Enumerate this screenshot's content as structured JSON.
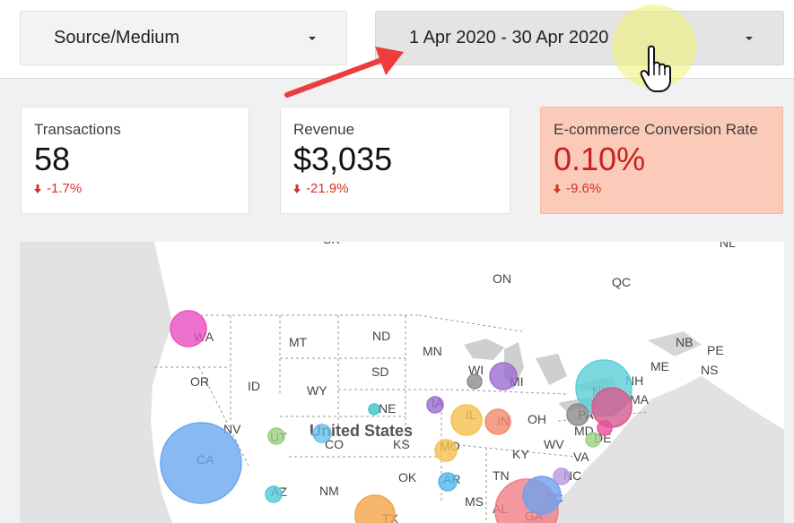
{
  "filters": {
    "dimension": "Source/Medium",
    "date_range": "1 Apr 2020 - 30 Apr 2020"
  },
  "icons": {
    "dropdown": "chevron-down-icon",
    "cursor": "hand-pointer-icon",
    "annotation": "red-arrow-icon",
    "delta": "arrow-down-icon"
  },
  "scorecards": [
    {
      "title": "Transactions",
      "value": "58",
      "delta": "-1.7%"
    },
    {
      "title": "Revenue",
      "value": "$3,035",
      "delta": "-21.9%"
    },
    {
      "title": "E-commerce Conversion Rate",
      "value": "0.10%",
      "delta": "-9.6%"
    }
  ],
  "map": {
    "country_label": "United States",
    "region_labels": [
      "NL",
      "ON",
      "QC",
      "NB",
      "PE",
      "NS",
      "ME",
      "WA",
      "MT",
      "ND",
      "MN",
      "OR",
      "ID",
      "SD",
      "WY",
      "WI",
      "MI",
      "NY",
      "NH",
      "MA",
      "IA",
      "NE",
      "IL",
      "IN",
      "OH",
      "PA",
      "NV",
      "UT",
      "CO",
      "KS",
      "MO",
      "MD",
      "DE",
      "CA",
      "KY",
      "WV",
      "VA",
      "OK",
      "AR",
      "TN",
      "NC",
      "AZ",
      "NM",
      "MS",
      "AL",
      "SC",
      "GA",
      "TX",
      "SK"
    ],
    "bubbles": [
      {
        "state": "WA",
        "color": "#e94fc0"
      },
      {
        "state": "CA",
        "color": "#6aa8f0"
      },
      {
        "state": "NY",
        "color": "#5ccfd8"
      },
      {
        "state": "MA",
        "color": "#d85a8e"
      },
      {
        "state": "MI",
        "color": "#9b6fd0"
      },
      {
        "state": "IL",
        "color": "#f5c04d"
      },
      {
        "state": "IN",
        "color": "#f28a6b"
      },
      {
        "state": "PA",
        "color": "#8c8c8c"
      },
      {
        "state": "GA",
        "color": "#f07f86"
      },
      {
        "state": "SC",
        "color": "#6fa0ee"
      },
      {
        "state": "TX",
        "color": "#f2a44b"
      },
      {
        "state": "MO",
        "color": "#f5c04d"
      },
      {
        "state": "UT",
        "color": "#9bd17f"
      },
      {
        "state": "CO",
        "color": "#6cc0e8"
      },
      {
        "state": "AZ",
        "color": "#55c8dd"
      },
      {
        "state": "NE",
        "color": "#3bc5c5"
      },
      {
        "state": "IA",
        "color": "#9b6fd0"
      },
      {
        "state": "AR",
        "color": "#55b8ee"
      },
      {
        "state": "WI",
        "color": "#8c8c8c"
      },
      {
        "state": "NC",
        "color": "#b99ae0"
      },
      {
        "state": "DE",
        "color": "#9bd17f"
      },
      {
        "state": "MD",
        "color": "#e94fa0"
      }
    ]
  }
}
